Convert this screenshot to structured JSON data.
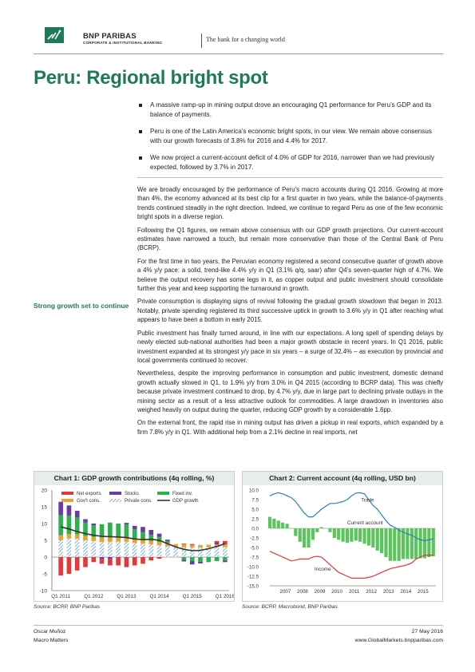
{
  "header": {
    "brand": "BNP PARIBAS",
    "brand_sub": "CORPORATE & INSTITUTIONAL BANKING",
    "tagline": "The bank for a changing world"
  },
  "title": "Peru: Regional bright spot",
  "bullets": [
    "A massive ramp-up in mining output drove an encouraging Q1 performance for Peru’s GDP and its balance of payments.",
    "Peru is one of the Latin America’s economic bright spots, in our view. We remain above consensus with our growth forecasts of 3.8% for 2016 and 4.4% for 2017.",
    "We now project a current-account deficit of 4.0% of GDP for 2016, narrower than we had previously expected, followed by 3.7% in 2017."
  ],
  "side_heading": "Strong growth set to continue",
  "paragraphs": [
    "We are broadly encouraged by the performance of Peru’s macro accounts during Q1 2016. Growing at more than 4%, the economy advanced at its best clip for a first quarter in two years, while the balance-of-payments trends continued steadily in the right direction. Indeed, we continue to regard Peru as one of the few economic bright spots in a diverse region.",
    "Following the Q1 figures, we remain above consensus with our GDP growth projections. Our current-account estimates have narrowed a touch, but remain more conservative than those of the Central Bank of Peru (BCRP).",
    "For the first time in two years, the Peruvian economy registered a second consecutive quarter of growth above a 4% y/y pace: a solid, trend-like 4.4% y/y in Q1 (3.1% q/q, saar) after Q4’s seven-quarter high of 4.7%. We believe the output recovery has some legs in it, as copper output and public investment should consolidate further this year and keep supporting the turnaround in growth.",
    "Private consumption is displaying signs of revival following the gradual growth slowdown that began in 2013. Notably, private spending registered its third successive uptick in growth to 3.6% y/y in Q1 after reaching what appears to have been a bottom in early 2015.",
    "Public investment has finally turned around, in line with our expectations. A long spell of spending delays by newly elected sub-national authorities had been a major growth obstacle in recent years. In Q1 2016, public investment expanded at its strongest y/y pace in six years – a surge of 32.4% – as execution by provincial and local governments continued to recover.",
    "Nevertheless, despite the improving performance in consumption and public investment, domestic demand growth actually slowed in Q1, to 1.9% y/y from 3.0% in Q4 2015 (according to BCRP data). This was chiefly because private investment continued to drop, by 4.7% y/y, due in large part to declining private outlays in the mining sector as a result of a less attractive outlook for commodities. A large drawdown in inventories also weighed heavily on output during the quarter, reducing GDP growth by a considerable 1.6pp.",
    "On the external front, the rapid rise in mining output has driven a pickup in real exports, which expanded by a firm 7.8% y/y in Q1. With additional help from a 2.1% decline in real imports, net"
  ],
  "chart1": {
    "title": "Chart 1: GDP growth contributions (4q rolling, %)",
    "source": "Source: BCRP, BNP Paribas",
    "colors": {
      "net_exports": "#e23a3a",
      "stocks": "#6b3aa8",
      "fixed_inv": "#2bb24a",
      "govt_cons": "#f0a12a",
      "private_cons": "#5a9bd6",
      "gdp_growth": "#333333"
    }
  },
  "chart2": {
    "title": "Chart 2: Current account (4q rolling, USD bn)",
    "source": "Source: BCRP, Macrobond, BNP Paribas",
    "colors": {
      "trade": "#2a7fc1",
      "current_account": "#5cc45c",
      "income": "#e23a3a"
    }
  },
  "chart_data": [
    {
      "type": "bar",
      "title": "Chart 1: GDP growth contributions (4q rolling, %)",
      "ylim": [
        -10,
        20
      ],
      "yticks": [
        "20",
        "15",
        "10",
        "5",
        "0",
        "-5",
        "-10"
      ],
      "x_tick_labels": [
        "Q1 2011",
        "Q1 2012",
        "Q1 2013",
        "Q1 2014",
        "Q1 2015",
        "Q1 2016"
      ],
      "categories": [
        "Q1 2011",
        "Q2 2011",
        "Q3 2011",
        "Q4 2011",
        "Q1 2012",
        "Q2 2012",
        "Q3 2012",
        "Q4 2012",
        "Q1 2013",
        "Q2 2013",
        "Q3 2013",
        "Q4 2013",
        "Q1 2014",
        "Q2 2014",
        "Q3 2014",
        "Q4 2014",
        "Q1 2015",
        "Q2 2015",
        "Q3 2015",
        "Q4 2015",
        "Q1 2016"
      ],
      "series": [
        {
          "name": "Net exports",
          "values": [
            -5.5,
            -5.0,
            -4.0,
            -3.0,
            -1.5,
            -1.5,
            -2.0,
            -2.5,
            -3.0,
            -2.5,
            -2.0,
            -1.0,
            -0.5,
            0.0,
            0.0,
            0.2,
            0.3,
            0.0,
            0.0,
            0.5,
            1.0
          ]
        },
        {
          "name": "Gov't cons.",
          "values": [
            1.5,
            1.4,
            1.3,
            1.3,
            1.2,
            1.3,
            1.3,
            1.2,
            1.2,
            1.1,
            1.0,
            1.0,
            1.0,
            1.0,
            0.9,
            0.9,
            0.8,
            0.8,
            0.8,
            0.8,
            0.8
          ]
        },
        {
          "name": "Stocks",
          "values": [
            4.0,
            3.0,
            2.0,
            1.0,
            0.5,
            -0.5,
            -0.5,
            0.0,
            0.5,
            1.0,
            1.5,
            1.5,
            1.0,
            0.5,
            0.0,
            -0.5,
            -1.0,
            -0.5,
            0.0,
            0.5,
            -0.5
          ]
        },
        {
          "name": "Private cons.",
          "values": [
            5.0,
            5.5,
            5.5,
            5.0,
            4.8,
            4.5,
            4.5,
            4.6,
            4.5,
            4.2,
            4.0,
            3.8,
            3.5,
            3.2,
            3.0,
            2.9,
            2.8,
            2.8,
            2.9,
            3.0,
            3.0
          ]
        },
        {
          "name": "Fixed inv.",
          "values": [
            6.0,
            5.5,
            5.0,
            4.0,
            3.5,
            4.0,
            4.5,
            4.2,
            4.0,
            3.0,
            2.5,
            1.8,
            1.5,
            0.5,
            0.0,
            -0.8,
            -1.2,
            -1.4,
            -1.5,
            -1.2,
            -1.0
          ]
        },
        {
          "name": "GDP growth",
          "values": [
            9.0,
            8.4,
            7.6,
            7.0,
            6.5,
            6.2,
            6.1,
            6.0,
            5.8,
            5.4,
            5.2,
            5.3,
            5.0,
            4.0,
            3.0,
            2.3,
            1.9,
            2.0,
            2.5,
            3.2,
            4.0
          ]
        }
      ]
    },
    {
      "type": "line",
      "title": "Chart 2: Current account (4q rolling, USD bn)",
      "ylim": [
        -15,
        10
      ],
      "yticks": [
        "10.0",
        "7.5",
        "5.0",
        "2.5",
        "0.0",
        "-2.5",
        "-5.0",
        "-7.5",
        "-10.0",
        "-12.5",
        "-15.0"
      ],
      "x_tick_labels": [
        "2007",
        "2008",
        "2009",
        "2010",
        "2011",
        "2012",
        "2013",
        "2014",
        "2015"
      ],
      "x": [
        2006.5,
        2006.75,
        2007.0,
        2007.25,
        2007.5,
        2007.75,
        2008.0,
        2008.25,
        2008.5,
        2008.75,
        2009.0,
        2009.25,
        2009.5,
        2009.75,
        2010.0,
        2010.25,
        2010.5,
        2010.75,
        2011.0,
        2011.25,
        2011.5,
        2011.75,
        2012.0,
        2012.25,
        2012.5,
        2012.75,
        2013.0,
        2013.25,
        2013.5,
        2013.75,
        2014.0,
        2014.25,
        2014.5,
        2014.75,
        2015.0,
        2015.25,
        2015.5,
        2015.75,
        2016.0
      ],
      "series": [
        {
          "name": "Trade",
          "values": [
            8.5,
            9.0,
            9.3,
            9.0,
            8.5,
            8.0,
            7.0,
            5.5,
            4.0,
            3.0,
            3.0,
            4.0,
            5.0,
            5.8,
            6.5,
            6.5,
            6.7,
            7.0,
            7.5,
            8.5,
            9.2,
            9.3,
            9.0,
            7.5,
            6.0,
            5.0,
            3.5,
            2.0,
            0.8,
            0.3,
            -0.5,
            -1.0,
            -1.5,
            -1.8,
            -2.5,
            -3.0,
            -3.2,
            -3.0,
            -2.7
          ]
        },
        {
          "name": "Current account",
          "values": [
            3.0,
            2.5,
            2.0,
            1.5,
            1.2,
            0.0,
            -2.0,
            -3.5,
            -5.0,
            -5.0,
            -3.0,
            -1.0,
            0.3,
            0.0,
            -1.0,
            -2.5,
            -3.0,
            -3.5,
            -3.8,
            -3.5,
            -3.2,
            -3.5,
            -4.0,
            -4.5,
            -5.0,
            -5.8,
            -6.5,
            -7.5,
            -8.5,
            -8.5,
            -8.5,
            -8.0,
            -8.0,
            -8.0,
            -8.0,
            -7.8,
            -7.8,
            -7.5,
            -7.3
          ]
        },
        {
          "name": "Income",
          "values": [
            -6.0,
            -6.5,
            -7.0,
            -7.5,
            -8.0,
            -8.5,
            -8.3,
            -8.0,
            -8.0,
            -8.0,
            -7.5,
            -7.3,
            -7.5,
            -8.5,
            -9.5,
            -10.5,
            -11.5,
            -12.0,
            -12.5,
            -13.0,
            -13.0,
            -13.0,
            -13.0,
            -12.8,
            -12.5,
            -12.0,
            -11.5,
            -11.0,
            -10.5,
            -10.3,
            -10.0,
            -9.8,
            -9.5,
            -9.0,
            -8.0,
            -7.5,
            -7.0,
            -7.0,
            -7.0
          ]
        }
      ]
    }
  ],
  "footer": {
    "author": "Oscar Muñoz",
    "publication": "Macro Matters",
    "date": "27 May 2016",
    "url": "www.GlobalMarkets.bnpparibas.com"
  }
}
